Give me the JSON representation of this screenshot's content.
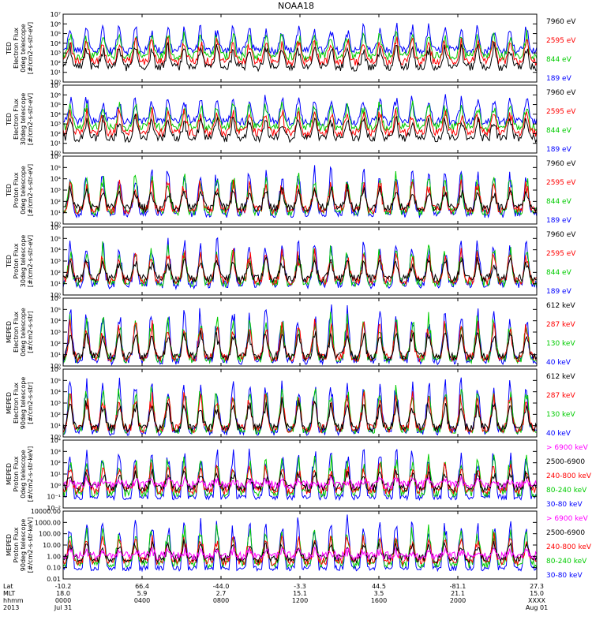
{
  "chart_data": {
    "type": "line",
    "title": "NOAA18",
    "x_time_ticks": [
      "0000",
      "0400",
      "0800",
      "1200",
      "1600",
      "2000",
      "XXXX"
    ],
    "x_date_ticks": [
      "Jul 31",
      "",
      "",
      "",
      "",
      "",
      "Aug 01"
    ],
    "footer_rows": [
      {
        "label": "Lat",
        "values": [
          "-10.2",
          "66.4",
          "-44.0",
          "-3.3",
          "44.5",
          "-81.1",
          "27.3"
        ]
      },
      {
        "label": "MLT",
        "values": [
          "18.0",
          "5.9",
          "2.7",
          "15.1",
          "3.5",
          "21.1",
          "15.0"
        ]
      },
      {
        "label": "hhmm",
        "values": [
          "0000",
          "0400",
          "0800",
          "1200",
          "1600",
          "2000",
          "XXXX"
        ]
      },
      {
        "label": "2013",
        "values": [
          "Jul 31",
          "",
          "",
          "",
          "",
          "",
          "Aug 01"
        ]
      }
    ],
    "panels": [
      {
        "ylabel": [
          "TED",
          "Electron Flux",
          "0deg telescope",
          "[#/cm2-s-str-eV]"
        ],
        "yscale": "log",
        "ylim": [
          1,
          10000000.0
        ],
        "yticks": [
          "10⁰",
          "10¹",
          "10²",
          "10³",
          "10⁴",
          "10⁵",
          "10⁶",
          "10⁷"
        ],
        "series": [
          {
            "name": "7960 eV",
            "color": "#000000"
          },
          {
            "name": "2595 eV",
            "color": "#ff0000"
          },
          {
            "name": "844 eV",
            "color": "#00cc00"
          },
          {
            "name": "189 eV",
            "color": "#0000ff"
          }
        ]
      },
      {
        "ylabel": [
          "TED",
          "Electron Flux",
          "30deg telescope",
          "[#/cm2-s-str-eV]"
        ],
        "yscale": "log",
        "ylim": [
          1,
          10000000.0
        ],
        "yticks": [
          "10⁰",
          "10¹",
          "10²",
          "10³",
          "10⁴",
          "10⁵",
          "10⁶",
          "10⁷"
        ],
        "series": [
          {
            "name": "7960 eV",
            "color": "#000000"
          },
          {
            "name": "2595 eV",
            "color": "#ff0000"
          },
          {
            "name": "844 eV",
            "color": "#00cc00"
          },
          {
            "name": "189 eV",
            "color": "#0000ff"
          }
        ]
      },
      {
        "ylabel": [
          "TED",
          "Proton Flux",
          "0deg telescope",
          "[#/cm2-s-str-eV]"
        ],
        "yscale": "log",
        "ylim": [
          1,
          1000000.0
        ],
        "yticks": [
          "10⁰",
          "10¹",
          "10²",
          "10³",
          "10⁴",
          "10⁵",
          "10⁶"
        ],
        "series": [
          {
            "name": "7960 eV",
            "color": "#000000"
          },
          {
            "name": "2595 eV",
            "color": "#ff0000"
          },
          {
            "name": "844 eV",
            "color": "#00cc00"
          },
          {
            "name": "189 eV",
            "color": "#0000ff"
          }
        ]
      },
      {
        "ylabel": [
          "TED",
          "Proton Flux",
          "30deg telescope",
          "[#/cm2-s-str-eV]"
        ],
        "yscale": "log",
        "ylim": [
          1,
          1000000.0
        ],
        "yticks": [
          "10⁰",
          "10¹",
          "10²",
          "10³",
          "10⁴",
          "10⁵",
          "10⁶"
        ],
        "series": [
          {
            "name": "7960 eV",
            "color": "#000000"
          },
          {
            "name": "2595 eV",
            "color": "#ff0000"
          },
          {
            "name": "844 eV",
            "color": "#00cc00"
          },
          {
            "name": "189 eV",
            "color": "#0000ff"
          }
        ]
      },
      {
        "ylabel": [
          "MEPED",
          "Electron Flux",
          "0deg telescope",
          "[#/cm2-s-str]"
        ],
        "yscale": "log",
        "ylim": [
          1,
          1000000.0
        ],
        "yticks": [
          "10⁰",
          "10¹",
          "10²",
          "10³",
          "10⁴",
          "10⁵",
          "10⁶"
        ],
        "series": [
          {
            "name": "612 keV",
            "color": "#000000"
          },
          {
            "name": "287 keV",
            "color": "#ff0000"
          },
          {
            "name": "130 keV",
            "color": "#00cc00"
          },
          {
            "name": "40 keV",
            "color": "#0000ff"
          }
        ]
      },
      {
        "ylabel": [
          "MEPED",
          "Electron Flux",
          "90deg telescope",
          "[#/cm2-s-str]"
        ],
        "yscale": "log",
        "ylim": [
          1,
          1000000.0
        ],
        "yticks": [
          "10⁰",
          "10¹",
          "10²",
          "10³",
          "10⁴",
          "10⁵",
          "10⁶"
        ],
        "series": [
          {
            "name": "612 keV",
            "color": "#000000"
          },
          {
            "name": "287 keV",
            "color": "#ff0000"
          },
          {
            "name": "130 keV",
            "color": "#00cc00"
          },
          {
            "name": "40 keV",
            "color": "#0000ff"
          }
        ]
      },
      {
        "ylabel": [
          "MEPED",
          "Proton Flux",
          "0deg telescope",
          "[#/cm2-s-str-keV]"
        ],
        "yscale": "log",
        "ylim": [
          0.01,
          10000
        ],
        "yticks": [
          "10⁻²",
          "10⁻¹",
          "10⁰",
          "10¹",
          "10²",
          "10³",
          "10⁴"
        ],
        "series": [
          {
            "name": "> 6900 keV",
            "color": "#ff00ff"
          },
          {
            "name": "2500-6900",
            "color": "#000000"
          },
          {
            "name": "240-800 keV",
            "color": "#ff0000"
          },
          {
            "name": "80-240 keV",
            "color": "#00cc00"
          },
          {
            "name": "30-80 keV",
            "color": "#0000ff"
          }
        ]
      },
      {
        "ylabel": [
          "MEPED",
          "Proton Flux",
          "90deg telescope",
          "[#/cm2-s-str-keV]"
        ],
        "yscale": "log",
        "ylim": [
          0.01,
          10000
        ],
        "yticks": [
          "0.01",
          "0.10",
          "1.00",
          "10.00",
          "100.00",
          "1000.00",
          "10000.00"
        ],
        "series": [
          {
            "name": "> 6900 keV",
            "color": "#ff00ff"
          },
          {
            "name": "2500-6900",
            "color": "#000000"
          },
          {
            "name": "240-800 keV",
            "color": "#ff0000"
          },
          {
            "name": "80-240 keV",
            "color": "#00cc00"
          },
          {
            "name": "30-80 keV",
            "color": "#0000ff"
          }
        ]
      }
    ]
  }
}
